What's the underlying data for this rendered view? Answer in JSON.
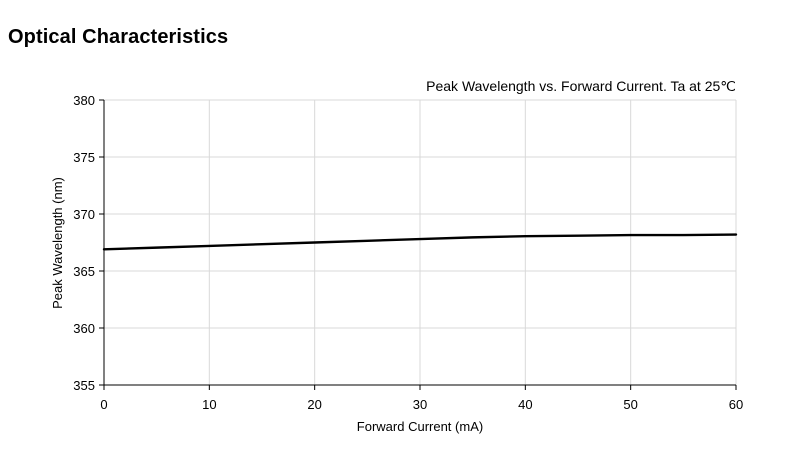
{
  "page": {
    "heading": "Optical Characteristics"
  },
  "chart_data": {
    "type": "line",
    "title": "Peak Wavelength vs. Forward Current. Ta at 25℃",
    "xlabel": "Forward Current (mA)",
    "ylabel": "Peak Wavelength (nm)",
    "xlim": [
      0,
      60
    ],
    "ylim": [
      355,
      380
    ],
    "xticks": [
      0,
      10,
      20,
      30,
      40,
      50,
      60
    ],
    "yticks": [
      355,
      360,
      365,
      370,
      375,
      380
    ],
    "grid": true,
    "series": [
      {
        "name": "",
        "color": "#000000",
        "x": [
          0,
          5,
          10,
          15,
          20,
          25,
          30,
          35,
          40,
          45,
          50,
          55,
          60
        ],
        "y": [
          366.9,
          367.05,
          367.2,
          367.35,
          367.5,
          367.65,
          367.8,
          367.95,
          368.05,
          368.1,
          368.15,
          368.15,
          368.2
        ]
      }
    ]
  }
}
